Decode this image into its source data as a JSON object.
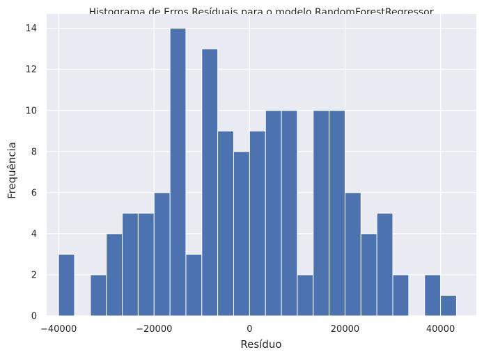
{
  "chart_data": {
    "type": "bar",
    "title": "Histograma de Erros Resíduais para o modelo RandomForestRegressor",
    "xlabel": "Resíduo",
    "ylabel": "Frequência",
    "bin_width": 3333,
    "bins_start": [
      -40000,
      -36667,
      -33333,
      -30000,
      -26667,
      -23333,
      -20000,
      -16667,
      -13333,
      -10000,
      -6667,
      -3333,
      0,
      3333,
      6667,
      10000,
      13333,
      16667,
      20000,
      23333,
      26667,
      30000,
      33333,
      36667,
      40000,
      43333
    ],
    "values": [
      3,
      0,
      2,
      4,
      5,
      5,
      6,
      14,
      3,
      13,
      9,
      8,
      9,
      10,
      10,
      2,
      10,
      10,
      6,
      4,
      5,
      2,
      0,
      2,
      1,
      0
    ],
    "xlim": [
      -42500,
      47500
    ],
    "ylim": [
      0,
      14.7
    ],
    "x_ticks": [
      -40000,
      -20000,
      0,
      20000,
      40000
    ],
    "x_tick_labels": [
      "−40000",
      "−20000",
      "0",
      "20000",
      "40000"
    ],
    "y_ticks": [
      0,
      2,
      4,
      6,
      8,
      10,
      12,
      14
    ],
    "y_tick_labels": [
      "0",
      "2",
      "4",
      "6",
      "8",
      "10",
      "12",
      "14"
    ],
    "grid": true,
    "colors": {
      "bar": "#4c72b0",
      "background": "#eaeaf2",
      "grid": "#ffffff"
    }
  }
}
